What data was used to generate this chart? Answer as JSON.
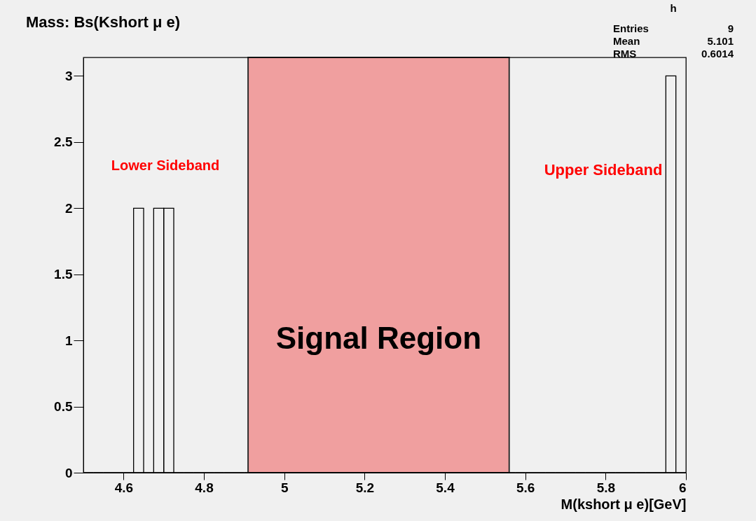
{
  "chart_data": {
    "type": "histogram",
    "title": "Mass: Bs(Kshort μ e)",
    "xlabel": "M(kshort μ e)[GeV]",
    "bins": [
      4.5,
      4.525,
      4.55,
      4.575,
      4.6,
      4.625,
      4.65,
      4.675,
      4.7,
      4.725,
      4.75,
      4.775,
      4.8,
      4.825,
      4.85,
      4.875,
      4.9,
      4.925,
      4.95,
      4.975,
      5.0,
      5.025,
      5.05,
      5.075,
      5.1,
      5.125,
      5.15,
      5.175,
      5.2,
      5.225,
      5.25,
      5.275,
      5.3,
      5.325,
      5.35,
      5.375,
      5.4,
      5.425,
      5.45,
      5.475,
      5.5,
      5.525,
      5.55,
      5.575,
      5.6,
      5.625,
      5.65,
      5.675,
      5.7,
      5.725,
      5.75,
      5.775,
      5.8,
      5.825,
      5.85,
      5.875,
      5.9,
      5.925,
      5.95,
      5.975,
      6.0
    ],
    "values": [
      0,
      0,
      0,
      0,
      0,
      2,
      0,
      2,
      2,
      0,
      0,
      0,
      0,
      0,
      0,
      0,
      0,
      0,
      0,
      0,
      0,
      0,
      0,
      0,
      0,
      0,
      0,
      0,
      0,
      0,
      0,
      0,
      0,
      0,
      0,
      0,
      0,
      0,
      0,
      0,
      0,
      0,
      0,
      0,
      0,
      0,
      0,
      0,
      0,
      0,
      0,
      0,
      0,
      0,
      0,
      0,
      0,
      0,
      3,
      0
    ],
    "color": "#000000",
    "xlim": [
      4.5,
      6.0
    ],
    "xticks": [
      4.6,
      4.8,
      5,
      5.2,
      5.4,
      5.6,
      5.8,
      6
    ],
    "ylim": [
      0,
      3.14
    ],
    "yticks": [
      0,
      0.5,
      1,
      1.5,
      2,
      2.5,
      3
    ],
    "bands": [
      {
        "axis": "x",
        "from": 4.91,
        "to": 5.56,
        "label": "Signal Region",
        "color": "#f08c8c"
      }
    ],
    "annotations": [
      "Lower Sideband",
      "Upper Sideband",
      "h",
      "Entries 9",
      "Mean 5.101",
      "RMS 0.6014"
    ],
    "grid": false
  }
}
